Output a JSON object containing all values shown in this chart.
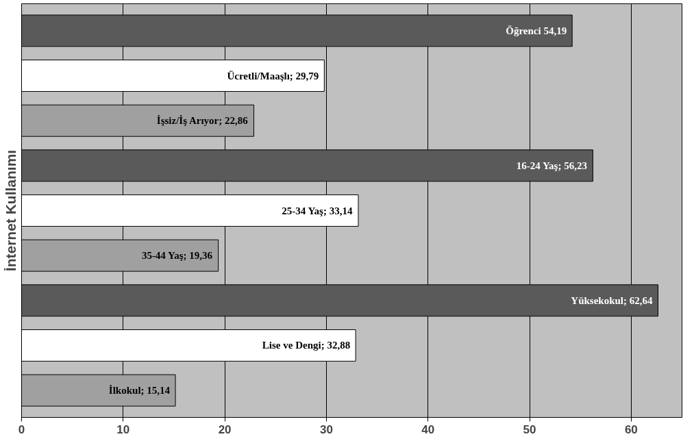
{
  "chart_data": {
    "type": "bar",
    "orientation": "horizontal",
    "ylabel": "İnternet Kullanımı",
    "categories": [
      null,
      null,
      null,
      null,
      null,
      null,
      null,
      null,
      null
    ],
    "values": [
      54.19,
      29.79,
      22.86,
      56.23,
      33.14,
      19.36,
      62.64,
      32.88,
      15.14
    ],
    "value_labels": [
      "Öğrenci 54,19",
      "Ücretli/Maaşlı; 29,79",
      "İşsiz/İş Arıyor; 22,86",
      "16-24 Yaş; 56,23",
      "25-34 Yaş; 33,14",
      "35-44 Yaş; 19,36",
      "Yüksekokul; 62,64",
      "Lise ve Dengi; 32,88",
      "İlkokul; 15,14"
    ],
    "colors": [
      "#5a5a5a",
      "#ffffff",
      "#a0a0a0",
      "#5a5a5a",
      "#ffffff",
      "#a0a0a0",
      "#5a5a5a",
      "#ffffff",
      "#a0a0a0"
    ],
    "xlim": [
      0,
      65
    ],
    "xticks": [
      0,
      10,
      20,
      30,
      40,
      50,
      60
    ],
    "grid": "x"
  }
}
